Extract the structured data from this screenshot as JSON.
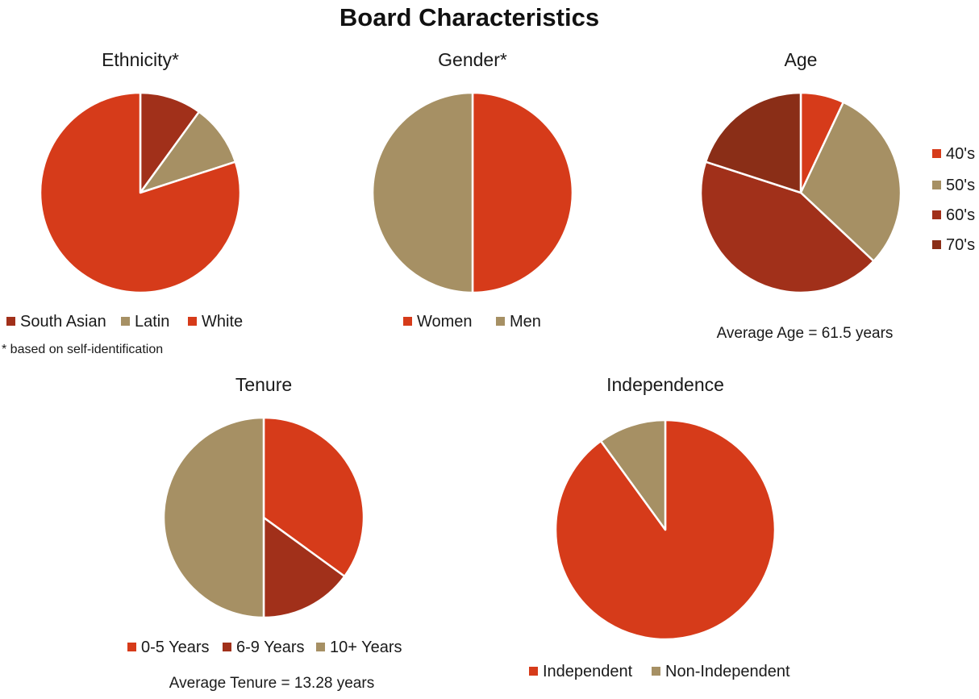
{
  "page_title": "Board Characteristics",
  "colors": {
    "orange": "#D63B1A",
    "tan": "#A69064",
    "rust": "#A1301A",
    "dark_rust": "#8A2E17",
    "stroke": "#ffffff"
  },
  "chart_data": [
    {
      "id": "ethnicity",
      "type": "pie",
      "title": "Ethnicity*",
      "categories": [
        "South Asian",
        "Latin",
        "White"
      ],
      "values": [
        10,
        10,
        80
      ],
      "unit": "%",
      "colors": [
        "#A1301A",
        "#A69064",
        "#D63B1A"
      ],
      "legend_position": "bottom",
      "footnote": "* based on self-identification"
    },
    {
      "id": "gender",
      "type": "pie",
      "title": "Gender*",
      "categories": [
        "Women",
        "Men"
      ],
      "values": [
        50,
        50
      ],
      "unit": "%",
      "colors": [
        "#D63B1A",
        "#A69064"
      ],
      "legend_position": "bottom"
    },
    {
      "id": "age",
      "type": "pie",
      "title": "Age",
      "categories": [
        "40's",
        "50's",
        "60's",
        "70's"
      ],
      "values": [
        7,
        30,
        43,
        20
      ],
      "unit": "%",
      "colors": [
        "#D63B1A",
        "#A69064",
        "#A1301A",
        "#8A2E17"
      ],
      "legend_position": "right",
      "note": "Average Age = 61.5 years"
    },
    {
      "id": "tenure",
      "type": "pie",
      "title": "Tenure",
      "categories": [
        "0-5 Years",
        "6-9 Years",
        "10+ Years"
      ],
      "values": [
        35,
        15,
        50
      ],
      "unit": "%",
      "colors": [
        "#D63B1A",
        "#A1301A",
        "#A69064"
      ],
      "legend_position": "bottom",
      "note": "Average Tenure = 13.28 years"
    },
    {
      "id": "independence",
      "type": "pie",
      "title": "Independence",
      "categories": [
        "Independent",
        "Non-Independent"
      ],
      "values": [
        90,
        10
      ],
      "unit": "%",
      "colors": [
        "#D63B1A",
        "#A69064"
      ],
      "legend_position": "bottom"
    }
  ]
}
